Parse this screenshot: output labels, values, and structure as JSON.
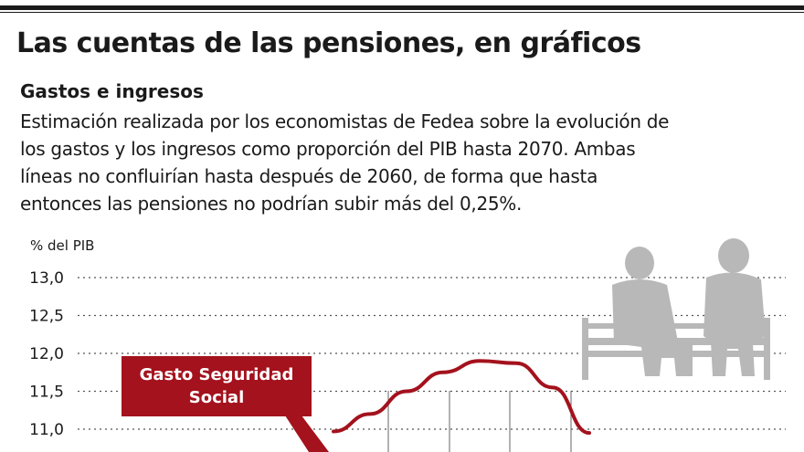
{
  "header": {
    "title": "Las cuentas de las pensiones, en gráficos",
    "subtitle": "Gastos e ingresos",
    "description_lines": [
      "Estimación realizada por los economistas de Fedea sobre la evolución de",
      "los gastos y los ingresos como proporción del PIB hasta 2070. Ambas",
      "líneas no confluirían hasta después de 2060, de forma que hasta",
      "entonces las pensiones no podrían subir más del 0,25%."
    ]
  },
  "chart_data": {
    "type": "line",
    "ylabel": "% del PIB",
    "ylim": [
      10.9,
      13.0
    ],
    "y_ticks": [
      "13,0",
      "12,5",
      "12,0",
      "11,5",
      "11,0"
    ],
    "y_tick_values": [
      13.0,
      12.5,
      12.0,
      11.5,
      11.0
    ],
    "grid": "dotted-horizontal",
    "series": [
      {
        "name": "Gasto Seguridad Social",
        "color": "#a3121d",
        "values": [
          10.97,
          11.2,
          11.5,
          11.75,
          11.9,
          11.87,
          11.55,
          10.95
        ]
      }
    ],
    "annotation": {
      "lines": [
        "Gasto Seguridad",
        "Social"
      ],
      "color": "#a3121d"
    },
    "illustration": "elderly-couple-on-bench-icon"
  }
}
